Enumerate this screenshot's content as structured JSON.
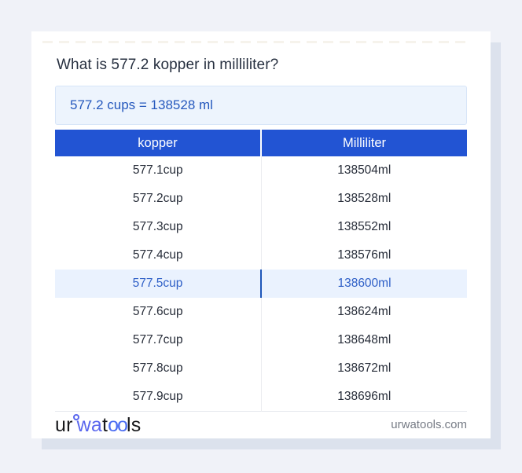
{
  "page": {
    "question": "What is 577.2 kopper in milliliter?",
    "answer": "577.2 cups = 138528 ml"
  },
  "table": {
    "headers": {
      "kopper": "kopper",
      "milliliter": "Milliliter"
    },
    "rows": [
      {
        "kopper": "577.1cup",
        "milliliter": "138504ml",
        "highlight": false
      },
      {
        "kopper": "577.2cup",
        "milliliter": "138528ml",
        "highlight": false
      },
      {
        "kopper": "577.3cup",
        "milliliter": "138552ml",
        "highlight": false
      },
      {
        "kopper": "577.4cup",
        "milliliter": "138576ml",
        "highlight": false
      },
      {
        "kopper": "577.5cup",
        "milliliter": "138600ml",
        "highlight": true
      },
      {
        "kopper": "577.6cup",
        "milliliter": "138624ml",
        "highlight": false
      },
      {
        "kopper": "577.7cup",
        "milliliter": "138648ml",
        "highlight": false
      },
      {
        "kopper": "577.8cup",
        "milliliter": "138672ml",
        "highlight": false
      },
      {
        "kopper": "577.9cup",
        "milliliter": "138696ml",
        "highlight": false
      }
    ]
  },
  "footer": {
    "logo_segments": {
      "seg1": "ur",
      "seg2": "wa",
      "seg3": "t",
      "seg4": "oo",
      "seg5": "ls"
    },
    "website": "urwatools.com"
  },
  "colors": {
    "page_background": "#f0f2f8",
    "card_shadow": "#dce2ed",
    "table_header_bg": "#2254d3",
    "table_header_text": "#ffffff",
    "highlight_row_bg": "#eaf2fe",
    "highlight_row_text": "#2e5fc7",
    "highlight_divider": "#1d56b8",
    "answer_box_bg": "#edf4fd",
    "answer_box_border": "#d7e5f8",
    "answer_text": "#2558bd",
    "logo_blue": "#5a67ee",
    "logo_dark": "#17181b"
  }
}
